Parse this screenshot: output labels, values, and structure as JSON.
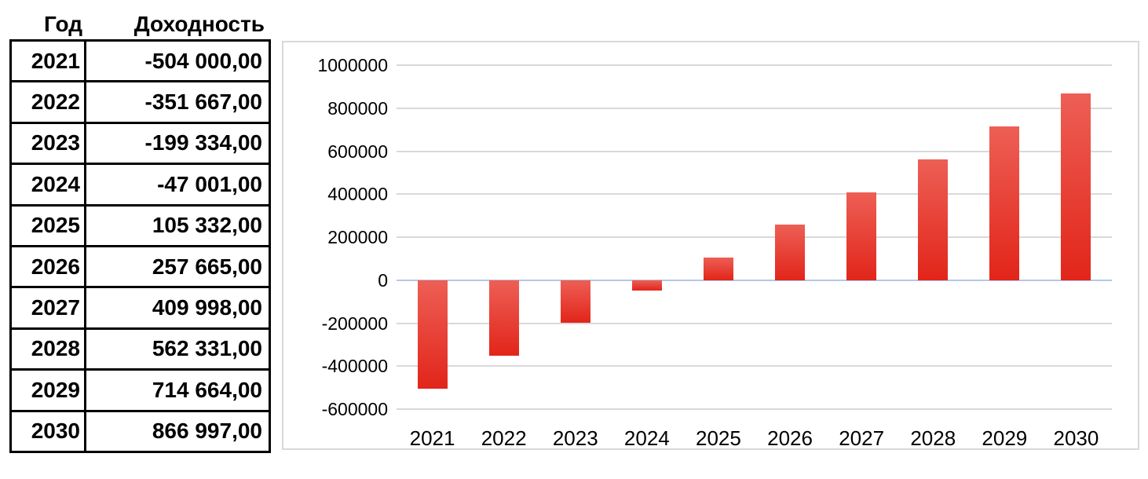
{
  "table": {
    "header_year": "Год",
    "header_value": "Доходность",
    "rows": [
      {
        "year": "2021",
        "value": "-504 000,00"
      },
      {
        "year": "2022",
        "value": "-351 667,00"
      },
      {
        "year": "2023",
        "value": "-199 334,00"
      },
      {
        "year": "2024",
        "value": "-47 001,00"
      },
      {
        "year": "2025",
        "value": "105 332,00"
      },
      {
        "year": "2026",
        "value": "257 665,00"
      },
      {
        "year": "2027",
        "value": "409 998,00"
      },
      {
        "year": "2028",
        "value": "562 331,00"
      },
      {
        "year": "2029",
        "value": "714 664,00"
      },
      {
        "year": "2030",
        "value": "866 997,00"
      }
    ]
  },
  "chart_data": {
    "type": "bar",
    "title": "",
    "xlabel": "",
    "ylabel": "",
    "categories": [
      "2021",
      "2022",
      "2023",
      "2024",
      "2025",
      "2026",
      "2027",
      "2028",
      "2029",
      "2030"
    ],
    "values": [
      -504000,
      -351667,
      -199334,
      -47001,
      105332,
      257665,
      409998,
      562331,
      714664,
      866997
    ],
    "ylim": [
      -600000,
      1000000
    ],
    "yticks": [
      1000000,
      800000,
      600000,
      400000,
      200000,
      0,
      -200000,
      -400000,
      -600000
    ],
    "ytick_labels": [
      "1000000",
      "800000",
      "600000",
      "400000",
      "200000",
      "0",
      "-200000",
      "-400000",
      "-600000"
    ],
    "grid": true,
    "legend": false,
    "colors": {
      "bar_gradient_top": "#ED5F55",
      "bar_gradient_bottom": "#E2251A",
      "gridline": "#D9D9D9",
      "zero_line": "#B4C7E7",
      "chart_border": "#D9D9D9",
      "text": "#000000"
    }
  }
}
